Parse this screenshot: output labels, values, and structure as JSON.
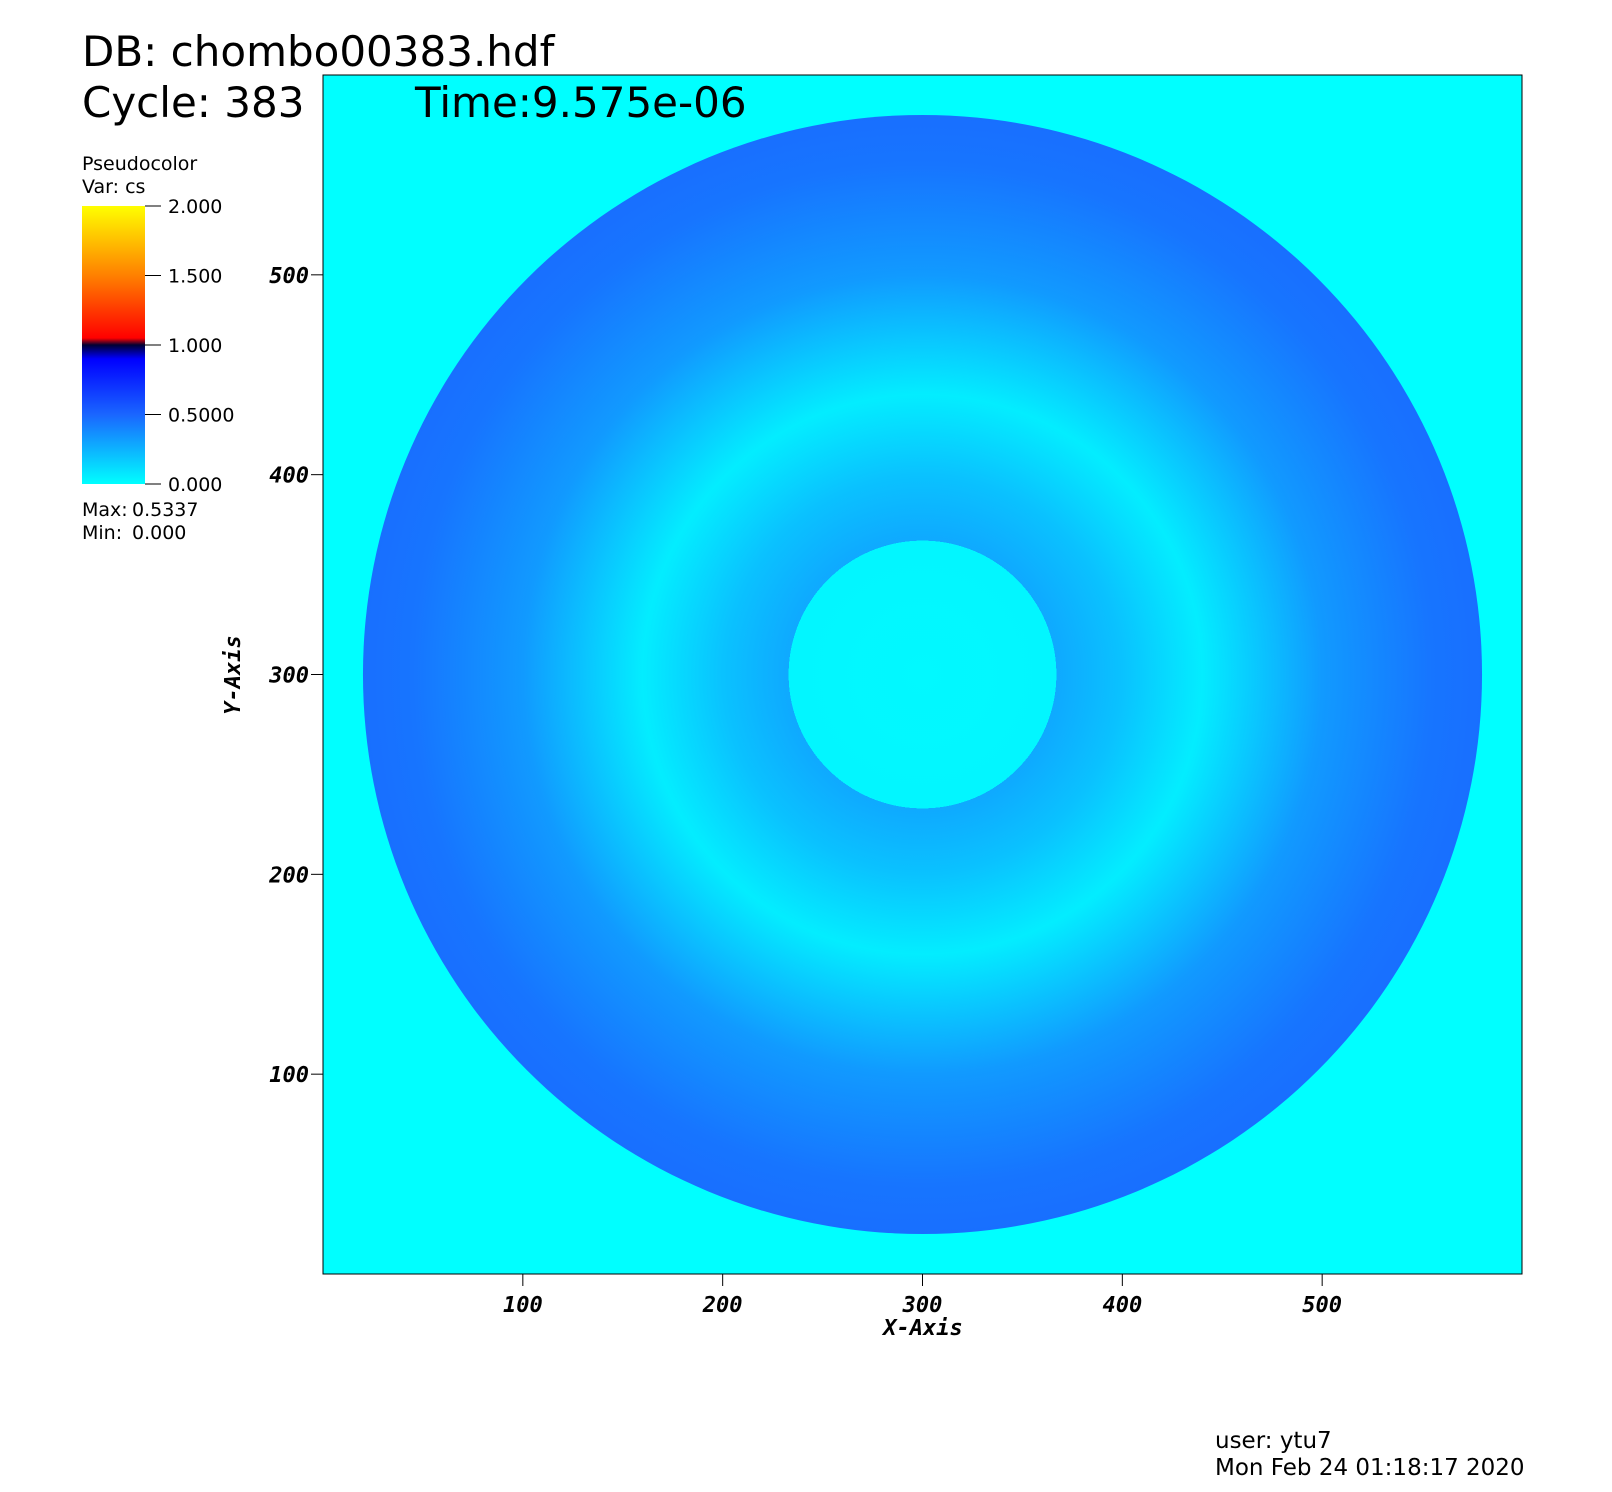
{
  "chart_data": {
    "type": "pseudocolor",
    "db_label": "DB: chombo00383.hdf",
    "cycle_label": "Cycle: 383",
    "time_label": "Time:9.575e-06",
    "legend_title": "Pseudocolor",
    "legend_var": "Var: cs",
    "colorbar": {
      "lim": [
        0,
        2
      ],
      "ticks": [
        {
          "value": 0,
          "label": "0.000"
        },
        {
          "value": 0.5,
          "label": "0.5000"
        },
        {
          "value": 1,
          "label": "1.000"
        },
        {
          "value": 1.5,
          "label": "1.500"
        },
        {
          "value": 2,
          "label": "2.000"
        }
      ],
      "stops": [
        0,
        0.5,
        0.9,
        1.0,
        1.05,
        1.5,
        2
      ],
      "colors": [
        "#00ffff",
        "#1a66ff",
        "#0000ff",
        "#000033",
        "#ff0000",
        "#ff8000",
        "#ffff00"
      ]
    },
    "max_label": "Max:",
    "max": 0.5337,
    "min_label": "Min:",
    "min": {
      "value": 0,
      "label": "0.000"
    },
    "background_value": 0,
    "field": {
      "center": [
        300,
        300
      ],
      "r": [
        0,
        67,
        67,
        100,
        140,
        200,
        255,
        280
      ],
      "cs": [
        0.02,
        0.03,
        0.28,
        0.2,
        0.06,
        0.33,
        0.45,
        0.47
      ]
    },
    "xlim": [
      0,
      600
    ],
    "ylim": [
      0,
      600
    ],
    "xticks": [
      100,
      200,
      300,
      400,
      500
    ],
    "yticks": [
      100,
      200,
      300,
      400,
      500
    ],
    "xlabel": "X-Axis",
    "ylabel": "Y-Axis",
    "user_label": "user: ytu7",
    "date_label": "Mon Feb 24 01:18:17 2020"
  }
}
